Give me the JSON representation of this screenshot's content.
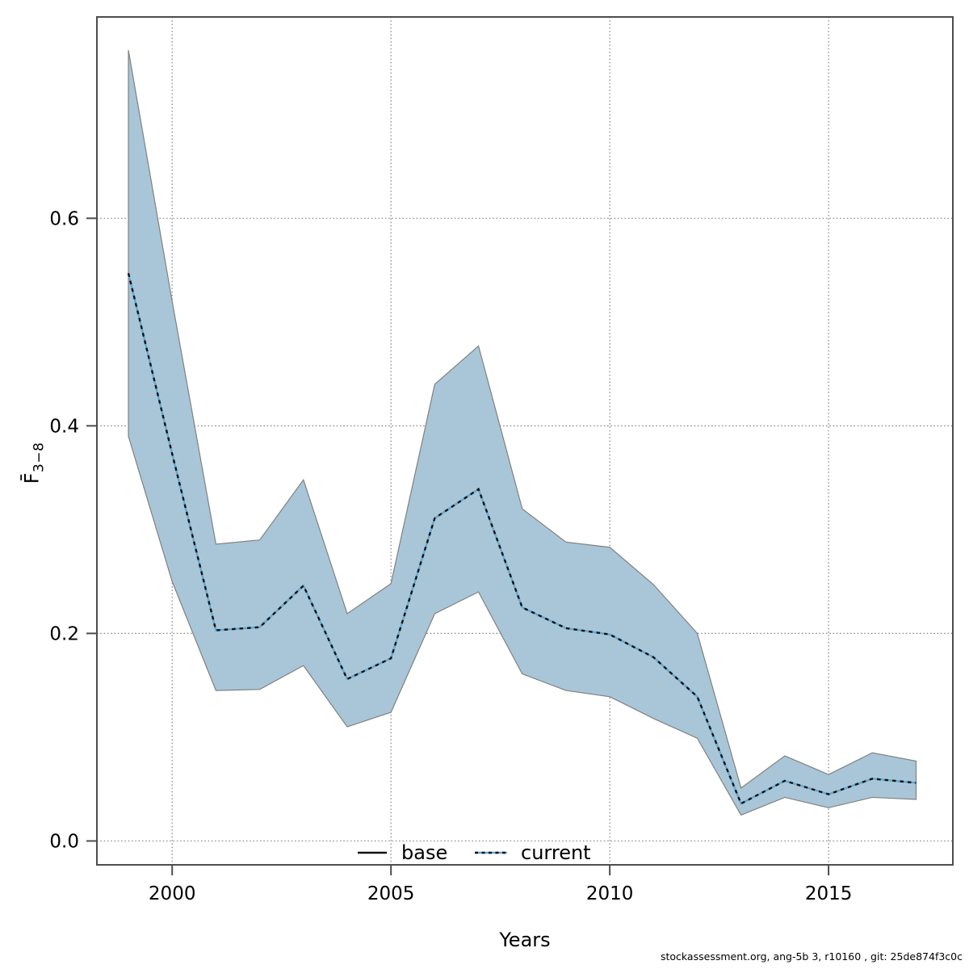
{
  "figure": {
    "caption": "stockassessment.org, ang-5b 3, r10160 , git: 25de874f3c0c",
    "ylabel_main": "F̄",
    "ylabel_sub": "3−8",
    "background": "#ffffff"
  },
  "chart_data": {
    "type": "line",
    "title": "",
    "xlabel": "Years",
    "ylabel": "F̄ 3−8",
    "x": [
      1999,
      2000,
      2001,
      2002,
      2003,
      2004,
      2005,
      2006,
      2007,
      2008,
      2009,
      2010,
      2011,
      2012,
      2013,
      2014,
      2015,
      2016,
      2017
    ],
    "series": [
      {
        "name": "current",
        "values": [
          0.547,
          0.373,
          0.203,
          0.206,
          0.246,
          0.156,
          0.176,
          0.311,
          0.339,
          0.225,
          0.205,
          0.199,
          0.177,
          0.139,
          0.036,
          0.058,
          0.045,
          0.06,
          0.056
        ]
      }
    ],
    "band": {
      "name": "current-confidence-interval",
      "lower": [
        0.39,
        0.25,
        0.145,
        0.146,
        0.169,
        0.11,
        0.124,
        0.219,
        0.24,
        0.161,
        0.145,
        0.139,
        0.118,
        0.099,
        0.025,
        0.042,
        0.032,
        0.042,
        0.04
      ],
      "upper": [
        0.762,
        0.52,
        0.286,
        0.29,
        0.348,
        0.219,
        0.248,
        0.44,
        0.477,
        0.32,
        0.288,
        0.283,
        0.247,
        0.2,
        0.051,
        0.082,
        0.064,
        0.085,
        0.077
      ]
    },
    "legend": [
      {
        "label": "base",
        "style": "solid"
      },
      {
        "label": "current",
        "style": "dotted"
      }
    ],
    "legend_position": "bottom-center-inside",
    "xticks": [
      2000,
      2005,
      2010,
      2015
    ],
    "yticks": [
      "0.0",
      "0.2",
      "0.4",
      "0.6"
    ],
    "ytick_values": [
      0.0,
      0.2,
      0.4,
      0.6
    ],
    "xlim": [
      1998.28,
      2017.84
    ],
    "ylim": [
      -0.023,
      0.794
    ],
    "grid": true,
    "colors": {
      "band_fill": "#a9c6d8",
      "band_stroke": "#808080",
      "line_dot_black": "#111111",
      "line_blue": "#61a9d2",
      "grid": "#808080",
      "box": "#4d4d4d",
      "text": "#000000"
    }
  }
}
